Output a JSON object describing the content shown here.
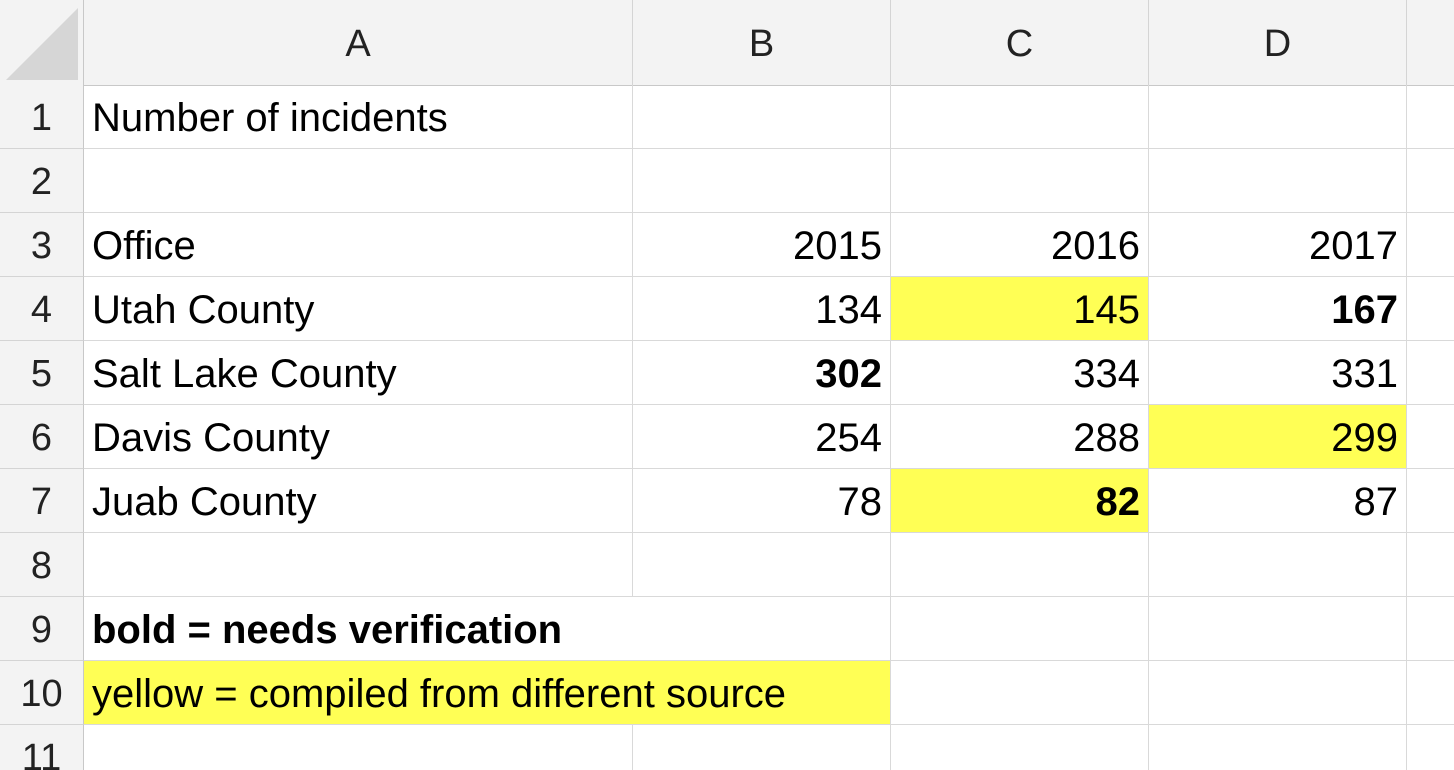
{
  "columns": [
    "A",
    "B",
    "C",
    "D"
  ],
  "rows": [
    {
      "num": "1",
      "cells": {
        "A": "Number of incidents",
        "B": "",
        "C": "",
        "D": ""
      }
    },
    {
      "num": "2",
      "cells": {
        "A": "",
        "B": "",
        "C": "",
        "D": ""
      }
    },
    {
      "num": "3",
      "cells": {
        "A": "Office",
        "B": "2015",
        "C": "2016",
        "D": "2017"
      }
    },
    {
      "num": "4",
      "cells": {
        "A": "Utah County",
        "B": "134",
        "C": "145",
        "D": "167"
      }
    },
    {
      "num": "5",
      "cells": {
        "A": "Salt Lake County",
        "B": "302",
        "C": "334",
        "D": "331"
      }
    },
    {
      "num": "6",
      "cells": {
        "A": "Davis County",
        "B": "254",
        "C": "288",
        "D": "299"
      }
    },
    {
      "num": "7",
      "cells": {
        "A": "Juab County",
        "B": "78",
        "C": "82",
        "D": "87"
      }
    },
    {
      "num": "8",
      "cells": {
        "A": "",
        "B": "",
        "C": "",
        "D": ""
      }
    },
    {
      "num": "9",
      "cells": {
        "A": "bold = needs verification",
        "B": "",
        "C": "",
        "D": ""
      }
    },
    {
      "num": "10",
      "cells": {
        "A": "yellow = compiled from different source",
        "B": "",
        "C": "",
        "D": ""
      }
    },
    {
      "num": "11",
      "cells": {
        "A": "",
        "B": "",
        "C": "",
        "D": ""
      }
    }
  ],
  "formatting": {
    "highlight_color": "#ffff55",
    "bold_cells": [
      "D4",
      "B5",
      "C7",
      "A9"
    ],
    "yellow_cells": [
      "C4",
      "D6",
      "C7",
      "A10"
    ]
  }
}
